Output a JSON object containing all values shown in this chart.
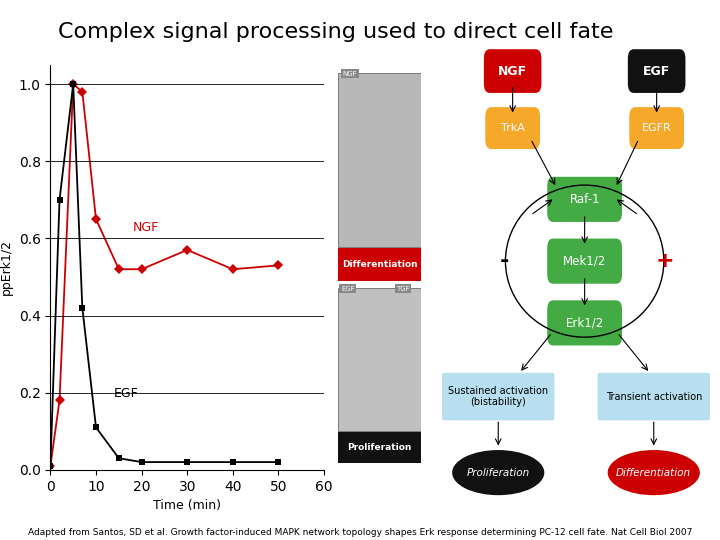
{
  "title": "Complex signal processing used to direct cell fate",
  "title_fontsize": 16,
  "caption": "Adapted from Santos, SD et al. Growth factor-induced MAPK network topology shapes Erk response determining PC-12 cell fate. Nat Cell Biol 2007",
  "caption_fontsize": 6.5,
  "ngf_time": [
    0,
    2,
    5,
    7,
    10,
    15,
    20,
    30,
    40,
    50
  ],
  "ngf_values": [
    0.01,
    0.18,
    1.0,
    0.98,
    0.65,
    0.52,
    0.52,
    0.57,
    0.52,
    0.53
  ],
  "egf_time": [
    0,
    2,
    5,
    7,
    10,
    15,
    20,
    30,
    40,
    50
  ],
  "egf_values": [
    0.01,
    0.7,
    1.0,
    0.42,
    0.11,
    0.03,
    0.02,
    0.02,
    0.02,
    0.02
  ],
  "ngf_color": "#cc0000",
  "egf_color": "#000000",
  "ylabel": "ppErk1/2",
  "xlabel": "Time (min)",
  "ylim": [
    0,
    1.05
  ],
  "xlim": [
    0,
    60
  ],
  "yticks": [
    0,
    0.2,
    0.4,
    0.6,
    0.8,
    1.0
  ],
  "xticks": [
    0,
    10,
    20,
    30,
    40,
    50,
    60
  ],
  "ngf_box_color": "#cc0000",
  "egf_box_color": "#111111",
  "trka_color": "#f5a82a",
  "egfr_color": "#f5a82a",
  "raf_color": "#44aa44",
  "mek_color": "#44aa44",
  "erk_color": "#44aa44",
  "sustained_color": "#b8dff0",
  "transient_color": "#b8dff0",
  "prolif_ellipse_color": "#111111",
  "diff_ellipse_color": "#cc0000",
  "diff_box_color": "#cc0000",
  "prolif_box_color": "#111111",
  "background_color": "#ffffff"
}
